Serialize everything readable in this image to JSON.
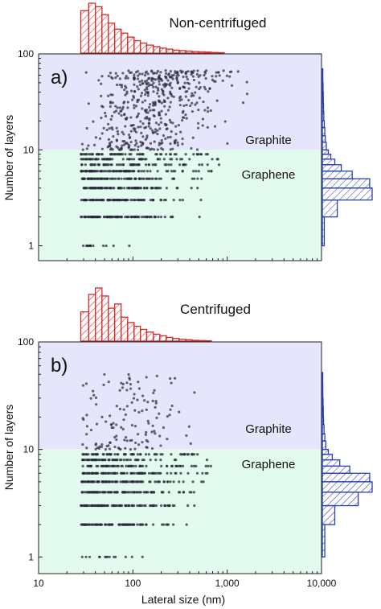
{
  "chart_data": [
    {
      "type": "scatter",
      "panel": "a)",
      "title": "Non-centrifuged",
      "xlabel": "Lateral size (nm)",
      "ylabel": "Number of layers",
      "xscale": "log",
      "yscale": "log",
      "xlim": [
        10,
        10000
      ],
      "ylim": [
        0.7,
        100
      ],
      "x_ticks": [
        "10",
        "100",
        "1,000",
        "10,000"
      ],
      "y_ticks": [
        "1",
        "10",
        "100"
      ],
      "regions": [
        {
          "name": "Graphite",
          "from": 10,
          "to": 100,
          "color": "#e5e5fb"
        },
        {
          "name": "Graphene",
          "from": 0.7,
          "to": 10,
          "color": "#e3faee"
        }
      ],
      "point_color": "#2a2a3a",
      "scatter_extent": {
        "lateral_size_nm": [
          28,
          3000
        ],
        "layers": [
          1,
          70
        ]
      },
      "top_histogram": {
        "variable": "lateral size (nm)",
        "bin_edges": [
          28,
          34,
          40,
          47,
          55,
          64,
          75,
          88,
          103,
          120,
          140,
          165,
          193,
          226,
          264,
          309,
          362,
          423,
          495,
          580,
          678,
          794,
          930
        ],
        "heights": [
          0.85,
          1.0,
          0.93,
          0.77,
          0.6,
          0.48,
          0.4,
          0.32,
          0.25,
          0.2,
          0.16,
          0.13,
          0.1,
          0.08,
          0.06,
          0.05,
          0.04,
          0.03,
          0.025,
          0.02,
          0.012,
          0.008
        ],
        "color": "#d42b2b"
      },
      "side_histogram": {
        "variable": "number of layers",
        "bins": [
          1,
          2,
          3,
          4,
          5,
          6,
          7,
          8,
          9,
          10,
          12,
          14,
          17,
          20,
          25,
          30,
          40,
          50,
          70
        ],
        "heights": [
          0.04,
          0.3,
          1.0,
          0.95,
          0.6,
          0.38,
          0.25,
          0.17,
          0.12,
          0.08,
          0.06,
          0.05,
          0.04,
          0.03,
          0.025,
          0.02,
          0.015,
          0.01
        ],
        "color": "#2b3fb5"
      },
      "labels": {
        "graphite": "Graphite",
        "graphene": "Graphene"
      }
    },
    {
      "type": "scatter",
      "panel": "b)",
      "title": "Centrifuged",
      "xlabel": "Lateral size (nm)",
      "ylabel": "Number of layers",
      "xscale": "log",
      "yscale": "log",
      "xlim": [
        10,
        10000
      ],
      "ylim": [
        0.7,
        100
      ],
      "x_ticks": [
        "10",
        "100",
        "1,000",
        "10,000"
      ],
      "y_ticks": [
        "1",
        "10",
        "100"
      ],
      "regions": [
        {
          "name": "Graphite",
          "from": 10,
          "to": 100,
          "color": "#e5e5fb"
        },
        {
          "name": "Graphene",
          "from": 0.7,
          "to": 10,
          "color": "#e3faee"
        }
      ],
      "point_color": "#2a2a3a",
      "scatter_extent": {
        "lateral_size_nm": [
          28,
          700
        ],
        "layers": [
          1,
          52
        ]
      },
      "top_histogram": {
        "variable": "lateral size (nm)",
        "bin_edges": [
          28,
          34,
          40,
          47,
          55,
          64,
          75,
          88,
          103,
          120,
          140,
          165,
          193,
          226,
          264,
          309,
          362,
          423,
          495,
          580,
          678
        ],
        "heights": [
          0.55,
          0.88,
          1.0,
          0.85,
          0.62,
          0.7,
          0.45,
          0.35,
          0.28,
          0.22,
          0.17,
          0.13,
          0.1,
          0.07,
          0.05,
          0.035,
          0.025,
          0.015,
          0.01,
          0.006
        ],
        "color": "#d42b2b"
      },
      "side_histogram": {
        "variable": "number of layers",
        "bins": [
          1,
          2,
          3,
          4,
          5,
          6,
          7,
          8,
          9,
          10,
          12,
          14,
          17,
          20,
          25,
          30,
          40,
          52
        ],
        "heights": [
          0.05,
          0.25,
          0.72,
          1.0,
          0.95,
          0.55,
          0.35,
          0.2,
          0.12,
          0.07,
          0.05,
          0.035,
          0.025,
          0.02,
          0.015,
          0.01,
          0.008
        ],
        "color": "#2b3fb5"
      },
      "labels": {
        "graphite": "Graphite",
        "graphene": "Graphene"
      }
    }
  ]
}
